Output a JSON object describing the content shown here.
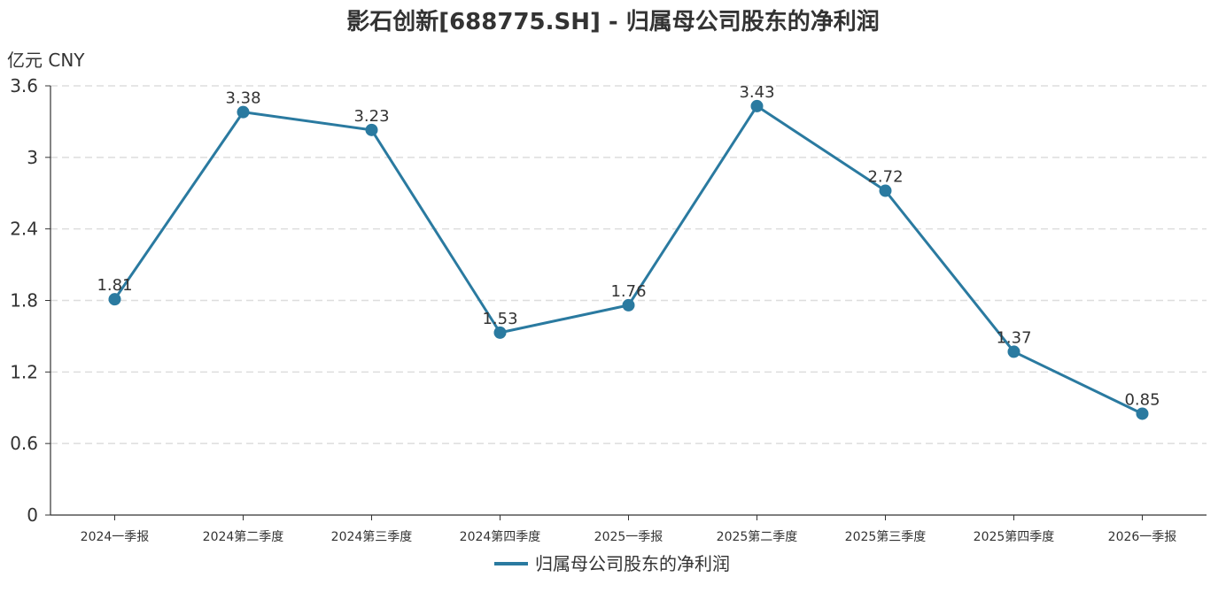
{
  "chart_data": {
    "type": "line",
    "title": "影石创新[688775.SH] - 归属母公司股东的净利润",
    "unit": "亿元  CNY",
    "categories": [
      "2024一季报",
      "2024第二季度",
      "2024第三季度",
      "2024第四季度",
      "2025一季报",
      "2025第二季度",
      "2025第三季度",
      "2025第四季度",
      "2026一季报"
    ],
    "series": [
      {
        "name": "归属母公司股东的净利润",
        "values": [
          1.81,
          3.38,
          3.23,
          1.53,
          1.76,
          3.43,
          2.72,
          1.37,
          0.85
        ]
      }
    ],
    "ylim": [
      0,
      3.6
    ],
    "yticks": [
      0,
      0.6,
      1.2,
      1.8,
      2.4,
      3,
      3.6
    ],
    "ytick_labels": [
      "0",
      "0.6",
      "1.2",
      "1.8",
      "2.4",
      "3",
      "3.6"
    ],
    "grid": true,
    "legend_position": "bottom-center",
    "colors": {
      "line": "#2a7aa0",
      "marker": "#2a7aa0",
      "grid": "#dddddd",
      "axis": "#333333"
    }
  }
}
